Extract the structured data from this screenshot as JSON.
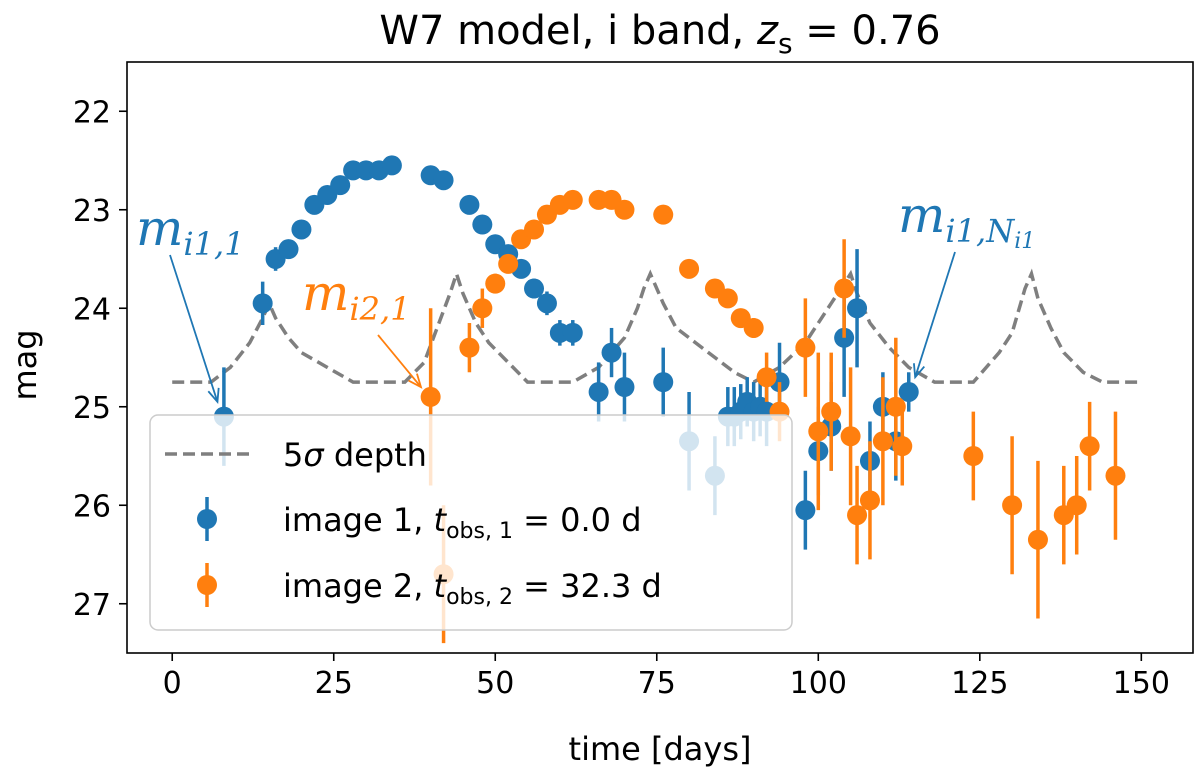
{
  "chart_data": {
    "type": "scatter",
    "title": "W7 model, i band, z_s = 0.76",
    "title_parts": {
      "prefix": "W7 model, i band, ",
      "var": "z",
      "sub": "s",
      "suffix": " = 0.76"
    },
    "xlabel": "time [days]",
    "ylabel": "mag",
    "xlim": [
      -7,
      158
    ],
    "ylim": [
      27.5,
      21.5
    ],
    "y_inverted": true,
    "xticks": [
      0,
      25,
      50,
      75,
      100,
      125,
      150
    ],
    "yticks": [
      22,
      23,
      24,
      25,
      26,
      27
    ],
    "legend_position": "lower-left",
    "depth": {
      "name": "5σ depth",
      "label_parts": {
        "num": "5",
        "sym": "σ",
        "rest": " depth"
      },
      "color": "#7f7f7f",
      "x": [
        0,
        6,
        9,
        12,
        14,
        15,
        16,
        18,
        20,
        24,
        28,
        32,
        36,
        39,
        41,
        43,
        44,
        45,
        47,
        49,
        52,
        55,
        58,
        62,
        66,
        70,
        72,
        73,
        74,
        76,
        78,
        81,
        84,
        87,
        90,
        94,
        98,
        100,
        102,
        104,
        105,
        106,
        108,
        111,
        114,
        118,
        122,
        124,
        126,
        128,
        130,
        132,
        133,
        134,
        136,
        138,
        141,
        144,
        147,
        150
      ],
      "y": [
        24.75,
        24.75,
        24.6,
        24.35,
        24.1,
        23.95,
        24.1,
        24.3,
        24.45,
        24.6,
        24.75,
        24.75,
        24.75,
        24.55,
        24.2,
        23.85,
        23.65,
        23.85,
        24.15,
        24.35,
        24.55,
        24.75,
        24.75,
        24.75,
        24.6,
        24.3,
        24.0,
        23.8,
        23.65,
        23.95,
        24.2,
        24.35,
        24.5,
        24.65,
        24.75,
        24.6,
        24.35,
        24.15,
        23.95,
        23.75,
        23.65,
        23.85,
        24.15,
        24.4,
        24.6,
        24.75,
        24.75,
        24.75,
        24.6,
        24.45,
        24.25,
        23.8,
        23.65,
        23.9,
        24.2,
        24.45,
        24.65,
        24.75,
        24.75,
        24.75
      ]
    },
    "series": [
      {
        "name": "image 1",
        "legend_label": {
          "prefix": "image 1, ",
          "var": "t",
          "sub": "obs, 1",
          "suffix": " = 0.0 d"
        },
        "color": "#1f77b4",
        "x": [
          8,
          14,
          16,
          18,
          20,
          22,
          24,
          26,
          28,
          30,
          32,
          34,
          40,
          42,
          46,
          48,
          50,
          52,
          54,
          56,
          58,
          60,
          62,
          66,
          68,
          70,
          76,
          80,
          84,
          86,
          87,
          88,
          89,
          90,
          91,
          92,
          94,
          98,
          100,
          102,
          104,
          106,
          108,
          110,
          112,
          114
        ],
        "y": [
          25.1,
          23.95,
          23.5,
          23.4,
          23.2,
          22.95,
          22.85,
          22.75,
          22.6,
          22.6,
          22.6,
          22.55,
          22.65,
          22.7,
          22.95,
          23.15,
          23.35,
          23.45,
          23.6,
          23.8,
          23.95,
          24.25,
          24.25,
          24.85,
          24.45,
          24.8,
          24.75,
          25.35,
          25.7,
          25.1,
          25.1,
          25.05,
          24.95,
          25.05,
          25.0,
          25.05,
          24.75,
          26.05,
          25.45,
          25.2,
          24.3,
          24.0,
          25.55,
          25.0,
          25.35,
          24.85
        ],
        "err": [
          0.5,
          0.22,
          0.12,
          0.08,
          0.05,
          0.04,
          0.03,
          0.03,
          0.02,
          0.02,
          0.02,
          0.02,
          0.03,
          0.03,
          0.04,
          0.05,
          0.06,
          0.07,
          0.08,
          0.1,
          0.12,
          0.13,
          0.13,
          0.3,
          0.25,
          0.35,
          0.35,
          0.5,
          0.4,
          0.3,
          0.3,
          0.28,
          0.25,
          0.3,
          0.3,
          0.35,
          0.4,
          0.4,
          0.45,
          0.45,
          0.6,
          0.6,
          0.4,
          0.35,
          0.4,
          0.2
        ]
      },
      {
        "name": "image 2",
        "legend_label": {
          "prefix": "image 2, ",
          "var": "t",
          "sub": "obs, 2",
          "suffix": " = 32.3 d"
        },
        "color": "#ff7f0e",
        "x": [
          40,
          42,
          46,
          48,
          50,
          52,
          54,
          56,
          58,
          60,
          62,
          66,
          68,
          70,
          76,
          80,
          84,
          86,
          88,
          90,
          92,
          94,
          98,
          100,
          102,
          104,
          105,
          106,
          108,
          110,
          112,
          113,
          124,
          130,
          134,
          138,
          140,
          142,
          146
        ],
        "y": [
          24.9,
          26.7,
          24.4,
          24.0,
          23.75,
          23.55,
          23.3,
          23.2,
          23.05,
          22.95,
          22.9,
          22.9,
          22.9,
          23.0,
          23.05,
          23.6,
          23.8,
          23.9,
          24.1,
          24.2,
          24.7,
          25.05,
          24.4,
          25.25,
          25.05,
          23.8,
          25.3,
          26.1,
          25.95,
          25.35,
          25.0,
          25.4,
          25.5,
          26.0,
          26.35,
          26.1,
          26.0,
          25.4,
          25.7
        ],
        "err": [
          0.9,
          0.7,
          0.25,
          0.2,
          0.1,
          0.08,
          0.05,
          0.04,
          0.03,
          0.03,
          0.03,
          0.03,
          0.03,
          0.03,
          0.04,
          0.05,
          0.06,
          0.06,
          0.08,
          0.1,
          0.25,
          0.3,
          0.5,
          0.8,
          0.6,
          0.5,
          0.7,
          0.5,
          0.6,
          0.65,
          0.7,
          0.4,
          0.45,
          0.7,
          0.8,
          0.5,
          0.5,
          0.45,
          0.65
        ]
      }
    ],
    "annotations": [
      {
        "name": "m-i1-1",
        "color": "#1f77b4",
        "base": "m",
        "sub": "i1,1",
        "subsub": "",
        "point_to": {
          "x": 7,
          "y": 24.95
        }
      },
      {
        "name": "m-i2-1",
        "color": "#ff7f0e",
        "base": "m",
        "sub": "i2,1",
        "subsub": "",
        "point_to": {
          "x": 38.5,
          "y": 24.8
        }
      },
      {
        "name": "m-i1-Ni1",
        "color": "#1f77b4",
        "base": "m",
        "sub": "i1,N",
        "subsub": "i1",
        "point_to": {
          "x": 115,
          "y": 24.7
        }
      }
    ]
  }
}
